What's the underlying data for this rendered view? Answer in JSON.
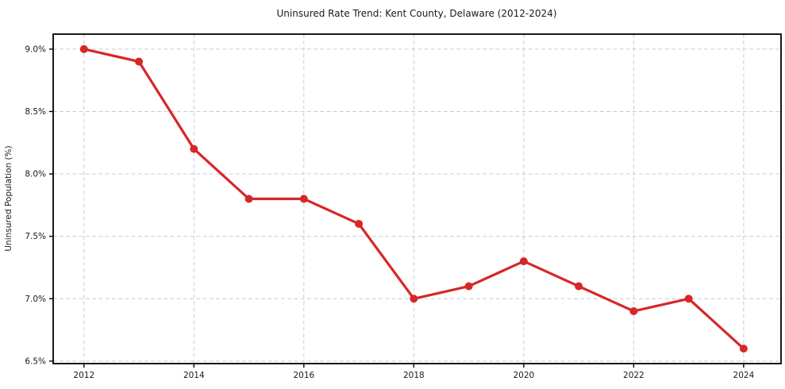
{
  "chart_data": {
    "type": "line",
    "title": "Uninsured Rate Trend: Kent County, Delaware (2012-2024)",
    "xlabel": "",
    "ylabel": "Uninsured Population (%)",
    "x": [
      2012,
      2013,
      2014,
      2015,
      2016,
      2017,
      2018,
      2019,
      2020,
      2021,
      2022,
      2023,
      2024
    ],
    "series": [
      {
        "name": "Uninsured Rate",
        "values": [
          9.0,
          8.9,
          8.2,
          7.8,
          7.8,
          7.6,
          7.0,
          7.1,
          7.3,
          7.1,
          6.9,
          7.0,
          6.6
        ],
        "color": "#d62728",
        "marker": "circle",
        "marker_radius": 5,
        "line_width": 3.2
      }
    ],
    "xticks": [
      2012,
      2014,
      2016,
      2018,
      2020,
      2022,
      2024
    ],
    "xtick_labels": [
      "2012",
      "2014",
      "2016",
      "2018",
      "2020",
      "2022",
      "2024"
    ],
    "yticks": [
      6.5,
      7.0,
      7.5,
      8.0,
      8.5,
      9.0
    ],
    "ytick_labels": [
      "6.5%",
      "7.0%",
      "7.5%",
      "8.0%",
      "8.5%",
      "9.0%"
    ],
    "xlim": [
      2011.44,
      2024.68
    ],
    "ylim": [
      6.48,
      9.12
    ],
    "grid": true,
    "grid_style": "dashed",
    "legend": "none",
    "colors": {
      "line": "#d62728",
      "grid": "#cccccc",
      "spine": "#000000",
      "text": "#1a1a1a",
      "background": "#ffffff"
    }
  }
}
